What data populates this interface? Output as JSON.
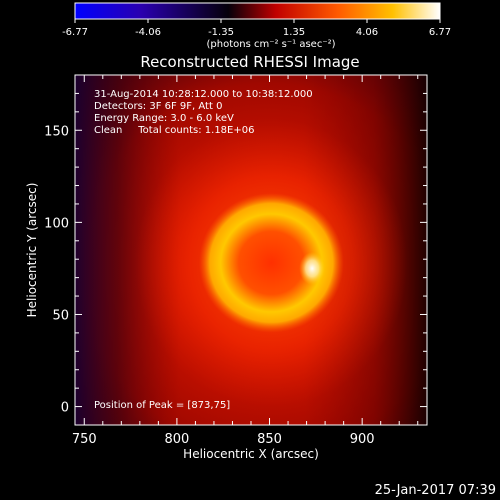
{
  "chart_data": {
    "type": "heatmap",
    "title": "Reconstructed RHESSI Image",
    "xlabel": "Heliocentric X (arcsec)",
    "ylabel": "Heliocentric Y (arcsec)",
    "xlim": [
      745,
      935
    ],
    "ylim": [
      -10,
      180
    ],
    "xticks": [
      750,
      800,
      850,
      900
    ],
    "yticks": [
      0,
      50,
      100,
      150
    ],
    "colorbar": {
      "range": [
        -6.77,
        6.77
      ],
      "ticks": [
        "-6.77",
        "-4.06",
        "-1.35",
        "1.35",
        "4.06",
        "6.77"
      ],
      "label": "(photons cm⁻² s⁻¹ asec⁻²)",
      "colors": [
        "#0000ff",
        "#3000a0",
        "#000000",
        "#cc0000",
        "#ff6600",
        "#ffcc00",
        "#ffffff"
      ]
    },
    "source": {
      "center_x": 851,
      "center_y": 78,
      "ring_radius": 23,
      "peak_x": 873,
      "peak_y": 75,
      "peak_value": 6.77
    },
    "annotations": [
      "31-Aug-2014 10:28:12.000 to 10:38:12.000",
      "Detectors: 3F 6F 9F, Att 0",
      "Energy Range: 3.0 - 6.0 keV",
      "Clean     Total counts: 1.18E+06",
      "Position of Peak = [873,75]"
    ]
  },
  "footer": {
    "timestamp": "25-Jan-2017 07:39"
  }
}
